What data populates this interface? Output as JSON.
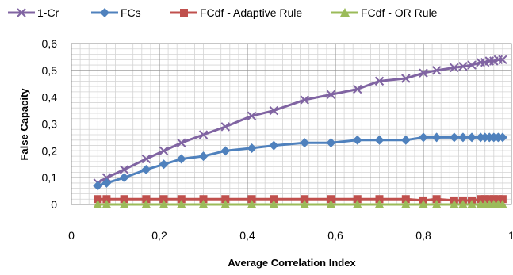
{
  "chart_data": {
    "type": "line",
    "title": "",
    "xlabel": "Average Correlation Index",
    "ylabel": "False Capacity",
    "xlim": [
      0,
      1
    ],
    "ylim": [
      0,
      0.6
    ],
    "x_ticks": [
      "0",
      "0,2",
      "0,4",
      "0,6",
      "0,8",
      "1"
    ],
    "y_ticks": [
      "0",
      "0,1",
      "0,2",
      "0,3",
      "0,4",
      "0,5",
      "0,6"
    ],
    "grid": true,
    "legend_position": "top",
    "series": [
      {
        "name": "1-Cr",
        "color": "#8064A2",
        "marker": "x",
        "points": [
          [
            0.06,
            0.08
          ],
          [
            0.08,
            0.1
          ],
          [
            0.12,
            0.13
          ],
          [
            0.17,
            0.17
          ],
          [
            0.21,
            0.2
          ],
          [
            0.25,
            0.23
          ],
          [
            0.3,
            0.26
          ],
          [
            0.35,
            0.29
          ],
          [
            0.41,
            0.33
          ],
          [
            0.46,
            0.35
          ],
          [
            0.53,
            0.39
          ],
          [
            0.59,
            0.41
          ],
          [
            0.65,
            0.43
          ],
          [
            0.7,
            0.46
          ],
          [
            0.76,
            0.47
          ],
          [
            0.8,
            0.49
          ],
          [
            0.83,
            0.5
          ],
          [
            0.87,
            0.51
          ],
          [
            0.89,
            0.515
          ],
          [
            0.91,
            0.52
          ],
          [
            0.93,
            0.53
          ],
          [
            0.94,
            0.53
          ],
          [
            0.95,
            0.535
          ],
          [
            0.96,
            0.535
          ],
          [
            0.97,
            0.54
          ],
          [
            0.98,
            0.54
          ]
        ]
      },
      {
        "name": "FCs",
        "color": "#4F81BD",
        "marker": "diamond",
        "points": [
          [
            0.06,
            0.07
          ],
          [
            0.08,
            0.08
          ],
          [
            0.12,
            0.1
          ],
          [
            0.17,
            0.13
          ],
          [
            0.21,
            0.15
          ],
          [
            0.25,
            0.17
          ],
          [
            0.3,
            0.18
          ],
          [
            0.35,
            0.2
          ],
          [
            0.41,
            0.21
          ],
          [
            0.46,
            0.22
          ],
          [
            0.53,
            0.23
          ],
          [
            0.59,
            0.23
          ],
          [
            0.65,
            0.24
          ],
          [
            0.7,
            0.24
          ],
          [
            0.76,
            0.24
          ],
          [
            0.8,
            0.25
          ],
          [
            0.83,
            0.25
          ],
          [
            0.87,
            0.25
          ],
          [
            0.89,
            0.25
          ],
          [
            0.91,
            0.25
          ],
          [
            0.93,
            0.25
          ],
          [
            0.94,
            0.25
          ],
          [
            0.95,
            0.25
          ],
          [
            0.96,
            0.25
          ],
          [
            0.97,
            0.25
          ],
          [
            0.98,
            0.25
          ]
        ]
      },
      {
        "name": "FCdf - Adaptive Rule",
        "color": "#C0504D",
        "marker": "square",
        "points": [
          [
            0.06,
            0.02
          ],
          [
            0.08,
            0.02
          ],
          [
            0.12,
            0.02
          ],
          [
            0.17,
            0.02
          ],
          [
            0.21,
            0.02
          ],
          [
            0.25,
            0.02
          ],
          [
            0.3,
            0.02
          ],
          [
            0.35,
            0.02
          ],
          [
            0.41,
            0.02
          ],
          [
            0.46,
            0.02
          ],
          [
            0.53,
            0.02
          ],
          [
            0.59,
            0.02
          ],
          [
            0.65,
            0.02
          ],
          [
            0.7,
            0.02
          ],
          [
            0.76,
            0.02
          ],
          [
            0.8,
            0.015
          ],
          [
            0.83,
            0.02
          ],
          [
            0.87,
            0.015
          ],
          [
            0.89,
            0.015
          ],
          [
            0.91,
            0.015
          ],
          [
            0.93,
            0.02
          ],
          [
            0.94,
            0.02
          ],
          [
            0.95,
            0.02
          ],
          [
            0.96,
            0.02
          ],
          [
            0.97,
            0.02
          ],
          [
            0.98,
            0.02
          ]
        ]
      },
      {
        "name": "FCdf - OR Rule",
        "color": "#9BBB59",
        "marker": "triangle",
        "points": [
          [
            0.06,
            0.0
          ],
          [
            0.08,
            0.0
          ],
          [
            0.12,
            0.0
          ],
          [
            0.17,
            0.0
          ],
          [
            0.21,
            0.0
          ],
          [
            0.25,
            0.0
          ],
          [
            0.3,
            0.0
          ],
          [
            0.35,
            0.0
          ],
          [
            0.41,
            0.0
          ],
          [
            0.46,
            0.0
          ],
          [
            0.53,
            0.0
          ],
          [
            0.59,
            0.0
          ],
          [
            0.65,
            0.0
          ],
          [
            0.7,
            0.0
          ],
          [
            0.76,
            0.0
          ],
          [
            0.8,
            0.0
          ],
          [
            0.83,
            0.0
          ],
          [
            0.87,
            0.0
          ],
          [
            0.89,
            0.0
          ],
          [
            0.91,
            0.0
          ],
          [
            0.93,
            0.0
          ],
          [
            0.94,
            0.0
          ],
          [
            0.95,
            0.0
          ],
          [
            0.96,
            0.0
          ],
          [
            0.97,
            0.0
          ],
          [
            0.98,
            0.0
          ]
        ]
      }
    ]
  }
}
